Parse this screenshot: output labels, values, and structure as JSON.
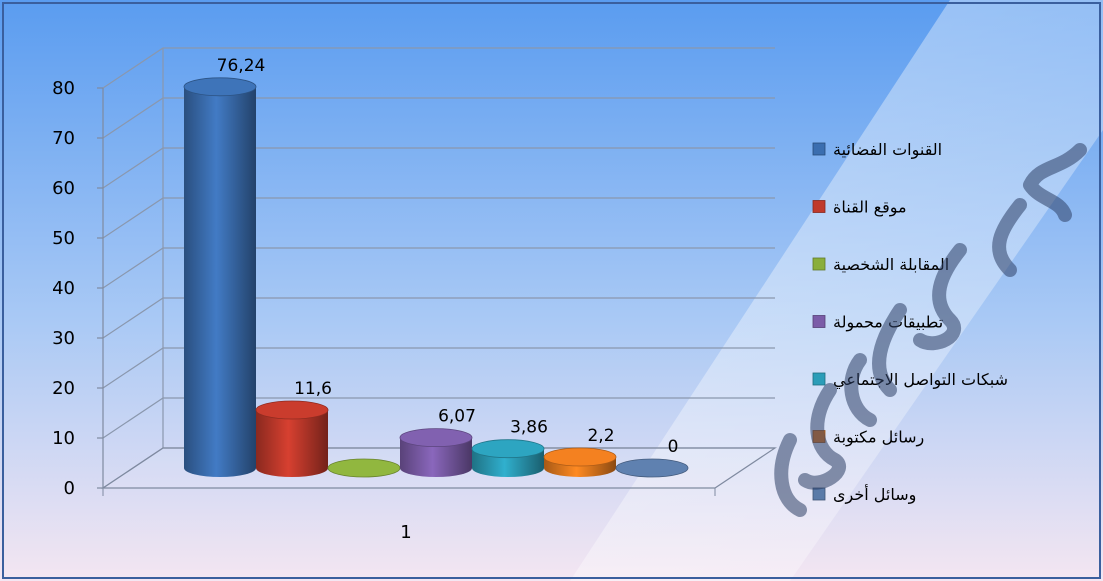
{
  "chart_data": {
    "type": "bar",
    "categories": [
      "1"
    ],
    "series": [
      {
        "name": "القنوات الفضائية",
        "value": 76.24,
        "label": "76,24",
        "color": "#3b6eb0"
      },
      {
        "name": "موقع القناة",
        "value": 11.6,
        "label": "11,6",
        "color": "#c0392b"
      },
      {
        "name": "المقابلة الشخصية",
        "value": 0,
        "label": "",
        "color": "#8aae3c"
      },
      {
        "name": "تطبيقات محمولة",
        "value": 6.07,
        "label": "6,07",
        "color": "#7b5ca8"
      },
      {
        "name": "شبكات التواصل الاجتماعي",
        "value": 3.86,
        "label": "3,86",
        "color": "#2b9db8"
      },
      {
        "name": "رسائل مكتوبة",
        "value": 2.2,
        "label": "2,2",
        "color": "#e87b1e"
      },
      {
        "name": "وسائل أخرى",
        "value": 0,
        "label": "0",
        "color": "#5a7ba8"
      }
    ],
    "y_ticks": [
      "0",
      "10",
      "20",
      "30",
      "40",
      "50",
      "60",
      "70",
      "80"
    ],
    "ylim": [
      0,
      80
    ],
    "grid": true,
    "legend_position": "right",
    "bar_style": "3d-cylinder"
  }
}
